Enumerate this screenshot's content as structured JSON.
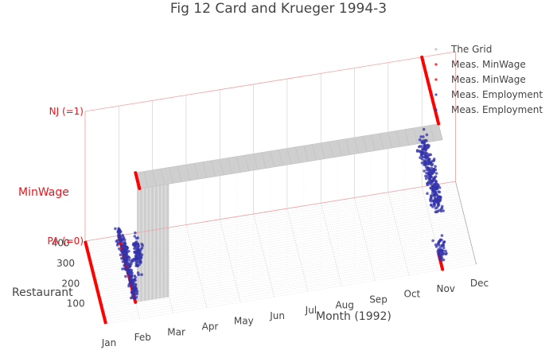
{
  "chart_data": {
    "type": "scatter3d",
    "title": "Fig 12 Card and Krueger 1994-3",
    "x_axis": {
      "label": "Month (1992)",
      "ticks": [
        "Jan",
        "Feb",
        "Mar",
        "Apr",
        "May",
        "Jun",
        "Jul",
        "Aug",
        "Sep",
        "Oct",
        "Nov",
        "Dec"
      ],
      "range": [
        1,
        12
      ]
    },
    "y_axis": {
      "label": "Restaurant",
      "ticks": [
        100,
        200,
        300,
        400
      ],
      "range": [
        0,
        410
      ]
    },
    "z_axis": {
      "label": "MinWage",
      "ticks": [
        "PA (=0)",
        "NJ (=1)"
      ],
      "range": [
        0,
        1
      ]
    },
    "legend": {
      "placement": "top-right",
      "entries": [
        "The Grid",
        "Meas. MinWage",
        "Meas. MinWage",
        "Meas. Employment",
        "Meas. Employment"
      ]
    },
    "series": [
      {
        "name": "The Grid",
        "color": "#bbbbbb",
        "description": "wireframe grid surface"
      },
      {
        "name": "Meas. MinWage",
        "color": "#ff0000",
        "segments": [
          {
            "month": 2,
            "minwage": 1,
            "restaurant_from": 1,
            "restaurant_to": 79
          },
          {
            "month": 11,
            "minwage": 1,
            "restaurant_from": 80,
            "restaurant_to": 410
          }
        ]
      },
      {
        "name": "Meas. MinWage",
        "color": "#ff0000",
        "segments": [
          {
            "month": 2,
            "minwage": 0,
            "restaurant_from": 80,
            "restaurant_to": 410
          },
          {
            "month": 11,
            "minwage": 0,
            "restaurant_from": 1,
            "restaurant_to": 79
          }
        ]
      },
      {
        "name": "Meas. Employment",
        "color": "#3333aa",
        "description": "employment measurements, February 1992",
        "month": 2
      },
      {
        "name": "Meas. Employment",
        "color": "#3333aa",
        "description": "employment measurements, November 1992",
        "month": 11
      }
    ]
  }
}
